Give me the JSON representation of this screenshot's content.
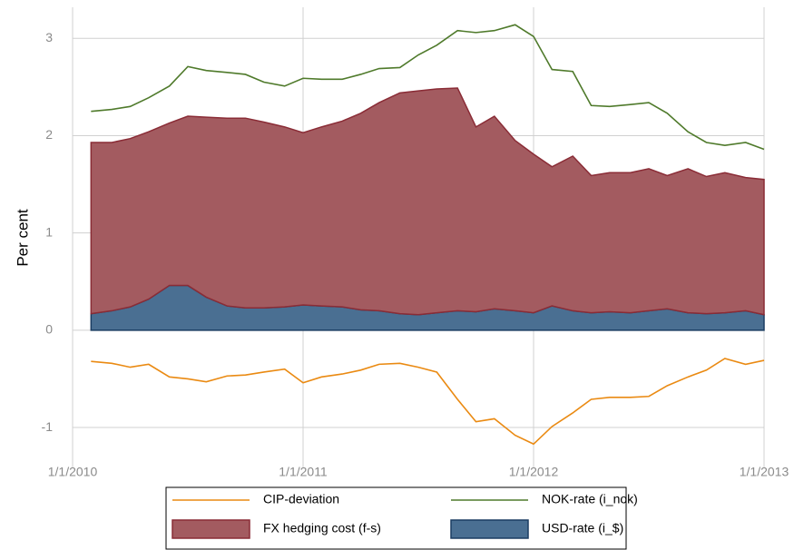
{
  "chart_data": {
    "type": "area",
    "y_label": "Per cent",
    "x": [
      2010.08,
      2010.17,
      2010.25,
      2010.33,
      2010.42,
      2010.5,
      2010.58,
      2010.67,
      2010.75,
      2010.83,
      2010.92,
      2011,
      2011.08,
      2011.17,
      2011.25,
      2011.33,
      2011.42,
      2011.5,
      2011.58,
      2011.67,
      2011.75,
      2011.83,
      2011.92,
      2012,
      2012.08,
      2012.17,
      2012.25,
      2012.33,
      2012.42,
      2012.5,
      2012.58,
      2012.67,
      2012.75,
      2012.83,
      2012.92,
      2013
    ],
    "xlim": [
      2010,
      2013
    ],
    "xticks": [
      {
        "value": 2010,
        "label": "1/1/2010"
      },
      {
        "value": 2011,
        "label": "1/1/2011"
      },
      {
        "value": 2012,
        "label": "1/1/2012"
      },
      {
        "value": 2013,
        "label": "1/1/2013"
      }
    ],
    "ylim": [
      -1.41,
      3.32
    ],
    "yticks": [
      -1,
      0,
      1,
      2,
      3
    ],
    "grid": true,
    "legend": "bottom",
    "series": [
      {
        "name": "CIP-deviation",
        "type": "line",
        "color": "#ea8a12",
        "values": [
          -0.32,
          -0.34,
          -0.38,
          -0.35,
          -0.48,
          -0.5,
          -0.53,
          -0.47,
          -0.46,
          -0.43,
          -0.4,
          -0.54,
          -0.48,
          -0.45,
          -0.41,
          -0.35,
          -0.34,
          -0.38,
          -0.43,
          -0.71,
          -0.94,
          -0.91,
          -1.08,
          -1.17,
          -0.99,
          -0.85,
          -0.71,
          -0.69,
          -0.69,
          -0.68,
          -0.57,
          -0.48,
          -0.41,
          -0.29,
          -0.35,
          -0.31
        ]
      },
      {
        "name": "NOK-rate (i_nok)",
        "type": "line",
        "color": "#4f7a2b",
        "values": [
          2.25,
          2.27,
          2.3,
          2.39,
          2.51,
          2.71,
          2.67,
          2.65,
          2.63,
          2.55,
          2.51,
          2.59,
          2.58,
          2.58,
          2.63,
          2.69,
          2.7,
          2.83,
          2.93,
          3.08,
          3.06,
          3.08,
          3.14,
          3.02,
          2.68,
          2.66,
          2.31,
          2.3,
          2.32,
          2.34,
          2.23,
          2.04,
          1.93,
          1.9,
          1.93,
          1.86
        ]
      },
      {
        "name": "FX hedging cost (f-s)",
        "type": "area",
        "color": "#a35b60",
        "edge": "#8a2c36",
        "values": [
          1.76,
          1.73,
          1.73,
          1.72,
          1.67,
          1.74,
          1.85,
          1.93,
          1.95,
          1.91,
          1.85,
          1.77,
          1.84,
          1.91,
          2.02,
          2.14,
          2.27,
          2.3,
          2.3,
          2.29,
          1.9,
          1.98,
          1.75,
          1.63,
          1.43,
          1.59,
          1.41,
          1.43,
          1.44,
          1.46,
          1.37,
          1.48,
          1.41,
          1.44,
          1.37,
          1.39
        ]
      },
      {
        "name": "USD-rate (i_$)",
        "type": "area",
        "color": "#4a6f92",
        "edge": "#1b3d62",
        "values": [
          0.17,
          0.2,
          0.24,
          0.32,
          0.46,
          0.46,
          0.34,
          0.25,
          0.23,
          0.23,
          0.24,
          0.26,
          0.25,
          0.24,
          0.21,
          0.2,
          0.17,
          0.16,
          0.18,
          0.2,
          0.19,
          0.22,
          0.2,
          0.18,
          0.25,
          0.2,
          0.18,
          0.19,
          0.18,
          0.2,
          0.22,
          0.18,
          0.17,
          0.18,
          0.2,
          0.16
        ]
      }
    ]
  }
}
